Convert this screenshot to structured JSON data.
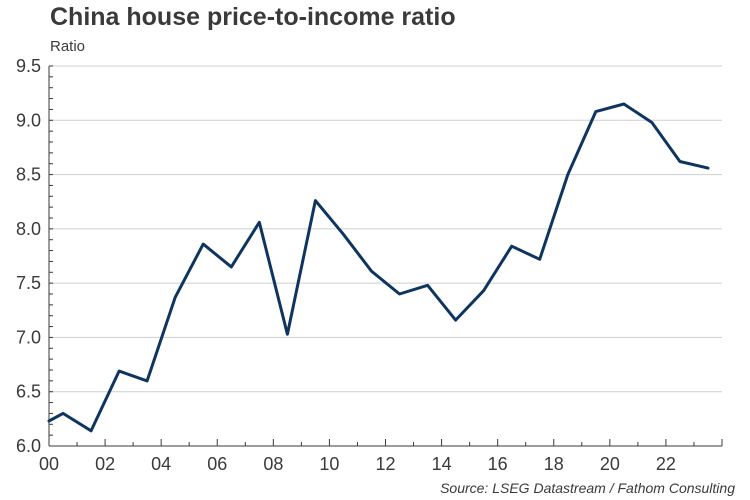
{
  "chart_data": {
    "type": "line",
    "title": "China house price-to-income ratio",
    "ylabel": "Ratio",
    "source": "Source: LSEG Datastream / Fathom Consulting",
    "ylim": [
      6.0,
      9.5
    ],
    "yticks": [
      "6.0",
      "6.5",
      "7.0",
      "7.5",
      "8.0",
      "8.5",
      "9.0",
      "9.5"
    ],
    "xlim": [
      2000,
      2024
    ],
    "xtick_labels": [
      "00",
      "02",
      "04",
      "06",
      "08",
      "10",
      "12",
      "14",
      "16",
      "18",
      "20",
      "22"
    ],
    "grid": true,
    "series": [
      {
        "color": "#0e3560",
        "x": [
          2000.0,
          2000.5,
          2001.5,
          2002.5,
          2003.5,
          2004.5,
          2005.5,
          2006.5,
          2007.5,
          2008.5,
          2009.5,
          2010.5,
          2011.5,
          2012.5,
          2013.5,
          2014.5,
          2015.5,
          2016.5,
          2017.5,
          2018.5,
          2019.5,
          2020.5,
          2021.5,
          2022.5,
          2023.5
        ],
        "y": [
          6.23,
          6.3,
          6.14,
          6.69,
          6.6,
          7.37,
          7.86,
          7.65,
          8.06,
          7.03,
          8.26,
          7.95,
          7.61,
          7.4,
          7.48,
          7.16,
          7.43,
          7.84,
          7.72,
          8.5,
          9.08,
          9.15,
          8.98,
          8.62,
          8.56
        ]
      }
    ]
  }
}
